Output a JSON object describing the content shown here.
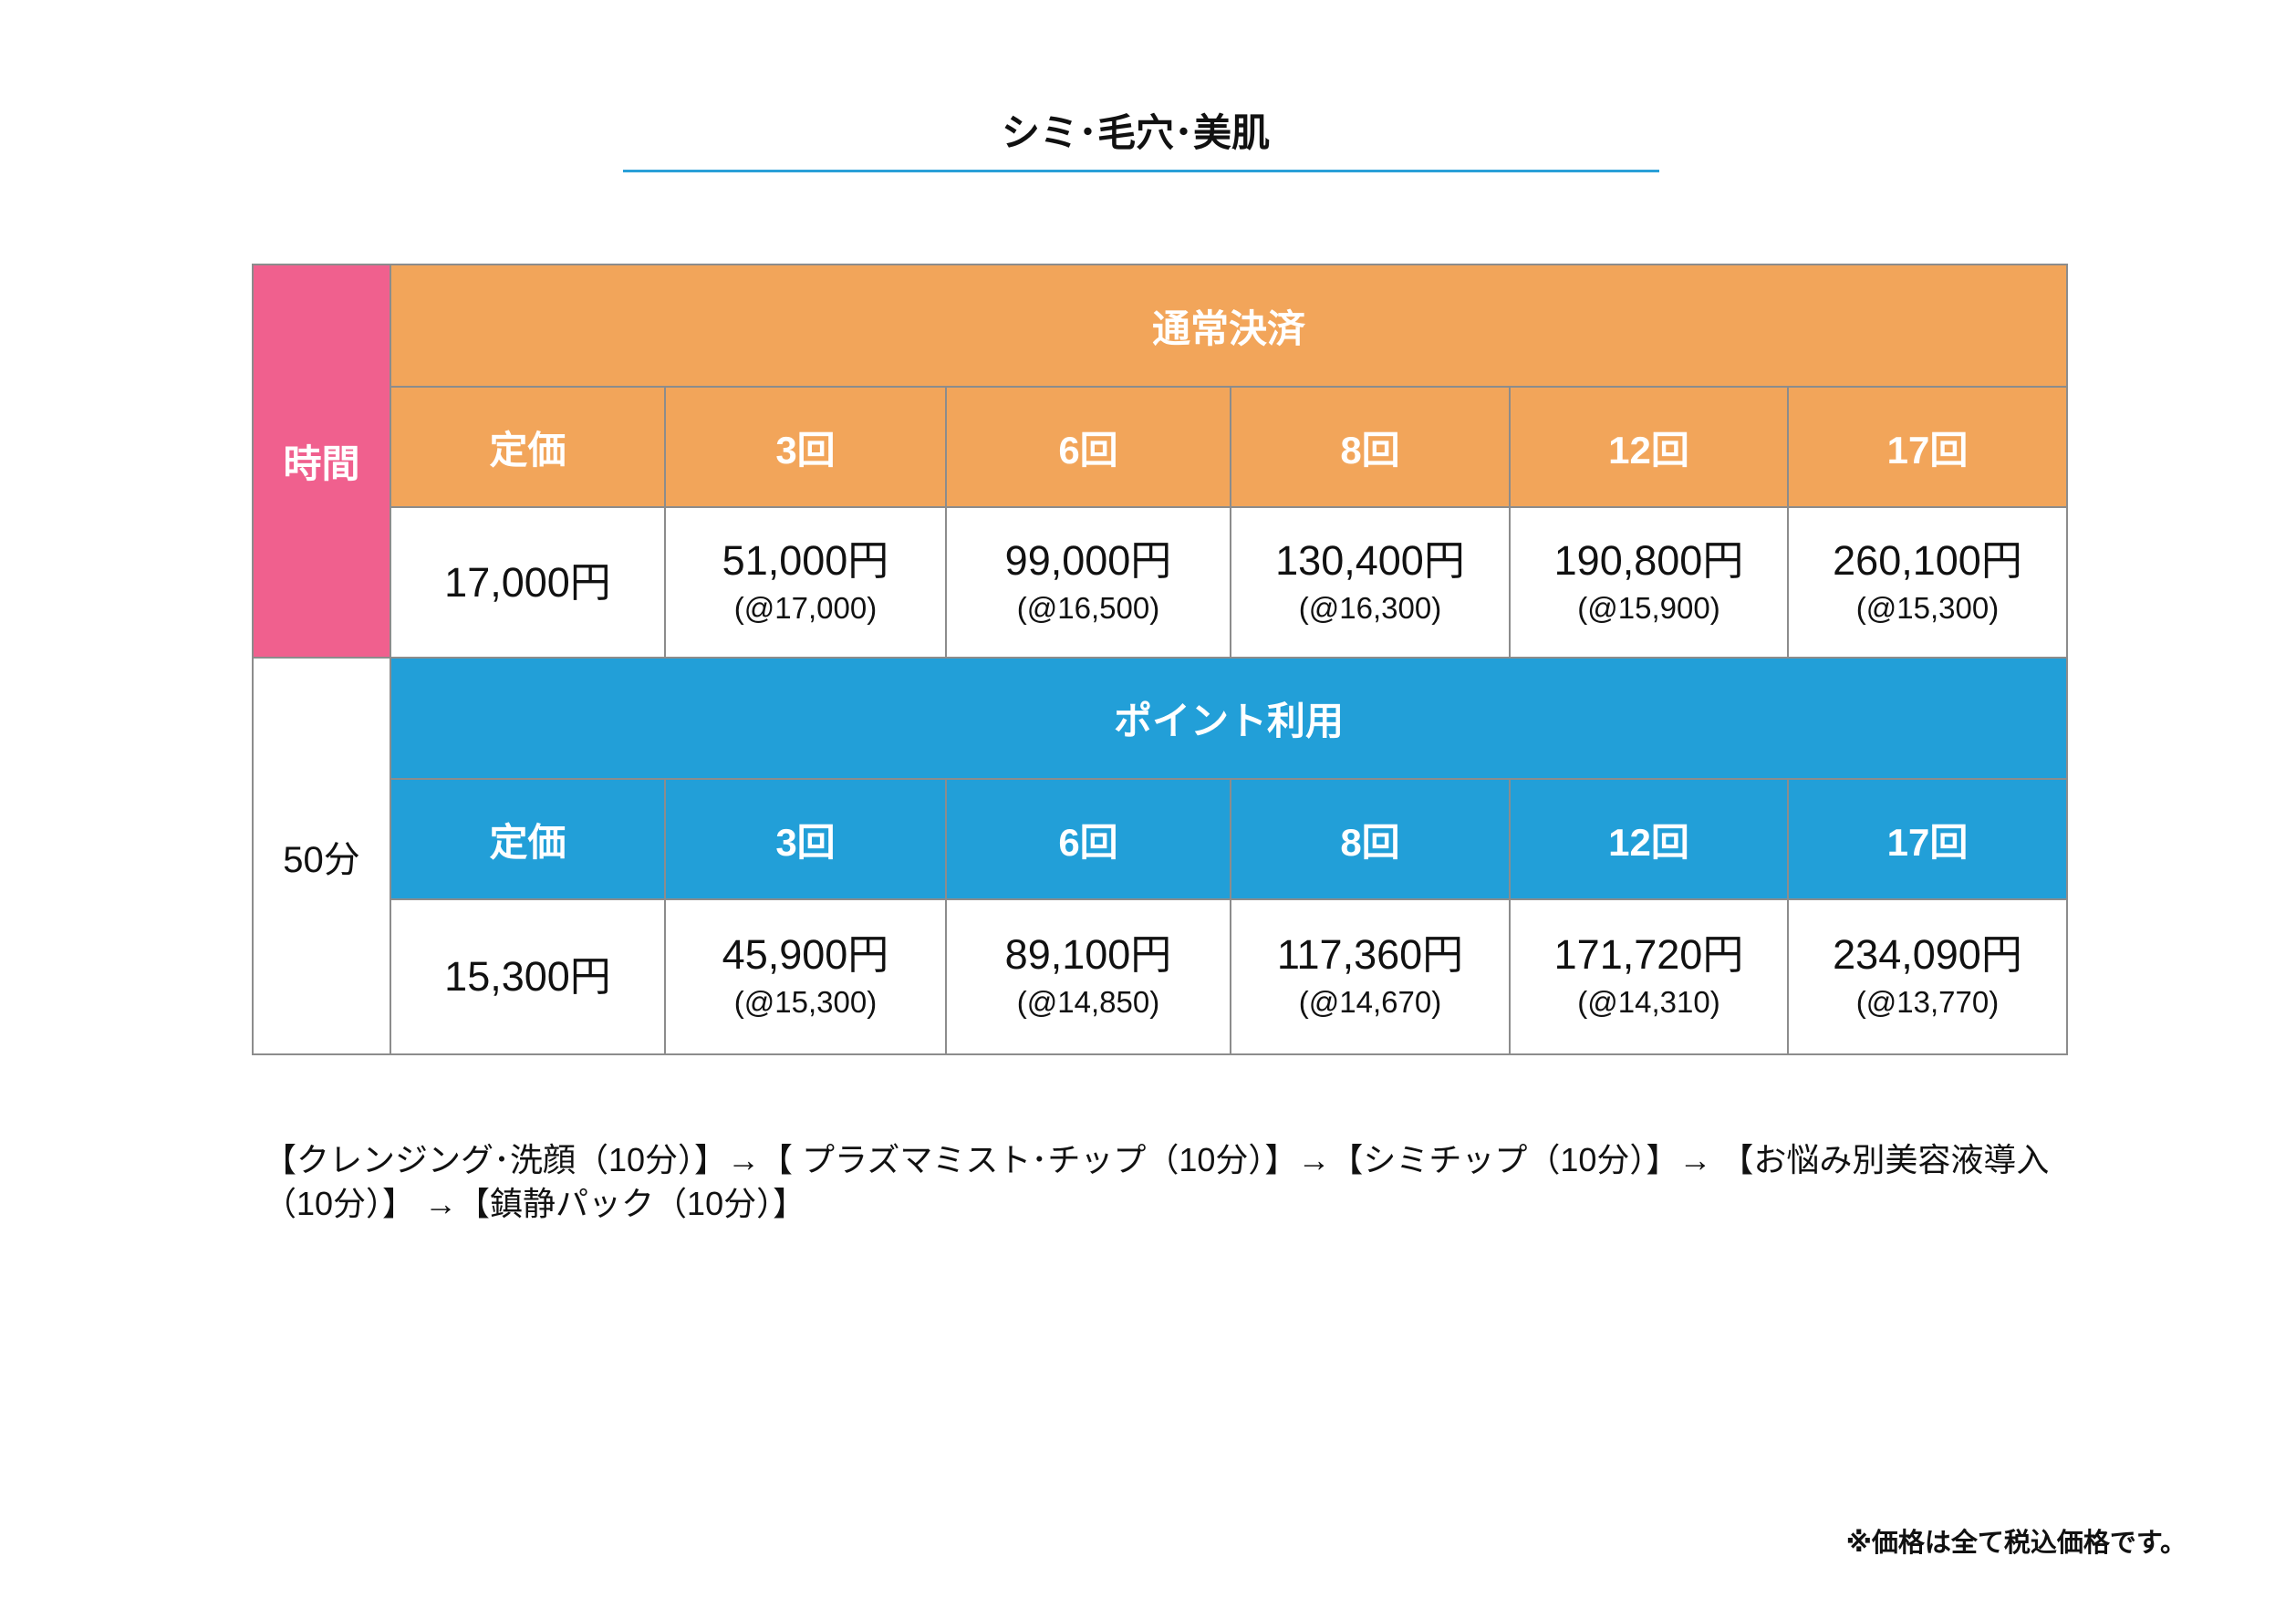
{
  "title": "シミ･毛穴･美肌",
  "colors": {
    "orange": "#f2a55a",
    "pink": "#f0608e",
    "blue": "#229fd8",
    "underline": "#2aa0d8"
  },
  "table": {
    "time_label": "時間",
    "time_value": "50分",
    "normal": {
      "heading": "通常決済",
      "columns": [
        "定価",
        "3回",
        "6回",
        "8回",
        "12回",
        "17回"
      ],
      "prices": [
        {
          "total": "17,000円",
          "per": ""
        },
        {
          "total": "51,000円",
          "per": "(@17,000)"
        },
        {
          "total": "99,000円",
          "per": "(@16,500)"
        },
        {
          "total": "130,400円",
          "per": "(@16,300)"
        },
        {
          "total": "190,800円",
          "per": "(@15,900)"
        },
        {
          "total": "260,100円",
          "per": "(@15,300)"
        }
      ]
    },
    "points": {
      "heading": "ポイント利用",
      "columns": [
        "定価",
        "3回",
        "6回",
        "8回",
        "12回",
        "17回"
      ],
      "prices": [
        {
          "total": "15,300円",
          "per": ""
        },
        {
          "total": "45,900円",
          "per": "(@15,300)"
        },
        {
          "total": "89,100円",
          "per": "(@14,850)"
        },
        {
          "total": "117,360円",
          "per": "(@14,670)"
        },
        {
          "total": "171,720円",
          "per": "(@14,310)"
        },
        {
          "total": "234,090円",
          "per": "(@13,770)"
        }
      ]
    }
  },
  "course_flow": "【クレンジング･洗顔（10分）】→【 プラズマミスト･チップ（10分）】→【シミチップ（10分）】→ 【お悩み別美容液導入（10分）】 →【鎮静パック（10分）】",
  "tax_note": "※価格は全て税込価格です。"
}
